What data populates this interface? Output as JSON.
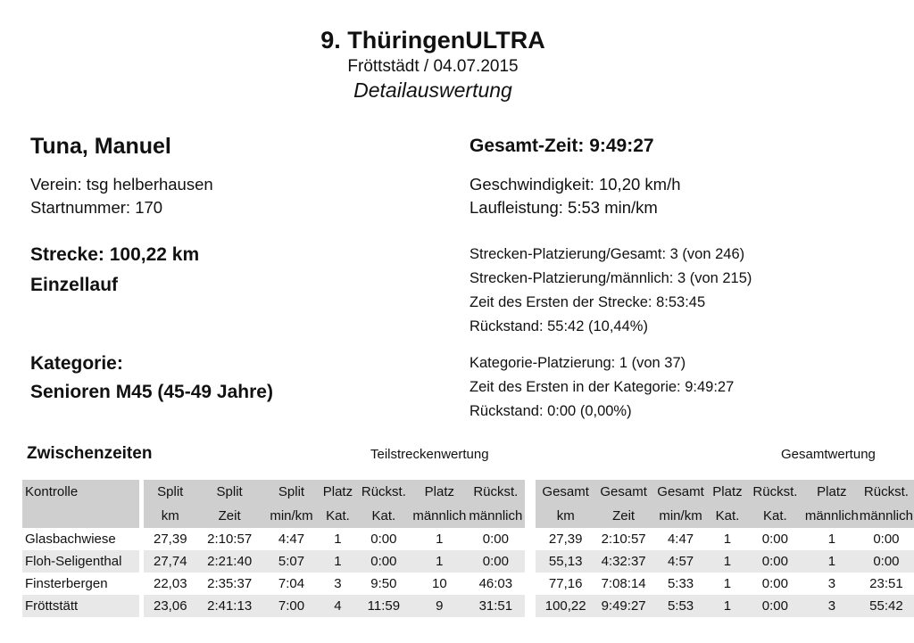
{
  "header": {
    "title": "9. ThüringenULTRA",
    "location_date": "Fröttstädt / 04.07.2015",
    "subtitle": "Detailauswertung"
  },
  "runner": {
    "name": "Tuna, Manuel",
    "club": "Verein: tsg helberhausen",
    "start_number": "Startnummer: 170",
    "distance": "Strecke: 100,22 km",
    "mode": "Einzellauf",
    "category_label": "Kategorie:",
    "category": "Senioren M45 (45-49 Jahre)"
  },
  "results": {
    "total_time": "Gesamt-Zeit: 9:49:27",
    "speed": "Geschwindigkeit: 10,20 km/h",
    "pace": "Laufleistung: 5:53 min/km",
    "rank_total": "Strecken-Platzierung/Gesamt: 3 (von 246)",
    "rank_male": "Strecken-Platzierung/männlich: 3 (von 215)",
    "leader_time": "Zeit des Ersten der Strecke: 8:53:45",
    "behind": "Rückstand: 55:42 (10,44%)",
    "cat_rank": "Kategorie-Platzierung: 1 (von 37)",
    "cat_leader_time": "Zeit des Ersten in der Kategorie: 9:49:27",
    "cat_behind": "Rückstand: 0:00 (0,00%)"
  },
  "splits": {
    "section_title": "Zwischenzeiten",
    "group1_label": "Teilstreckenwertung",
    "group2_label": "Gesamtwertung",
    "header_top": [
      "Kontrolle",
      "Split",
      "Split",
      "Split",
      "Platz",
      "Rückst.",
      "Platz",
      "Rückst.",
      "Gesamt",
      "Gesamt",
      "Gesamt",
      "Platz",
      "Rückst.",
      "Platz",
      "Rückst."
    ],
    "header_bottom": [
      "",
      "km",
      "Zeit",
      "min/km",
      "Kat.",
      "Kat.",
      "männlich",
      "männlich",
      "km",
      "Zeit",
      "min/km",
      "Kat.",
      "Kat.",
      "männlich",
      "männlich"
    ],
    "rows": [
      [
        "Glasbachwiese",
        "27,39",
        "2:10:57",
        "4:47",
        "1",
        "0:00",
        "1",
        "0:00",
        "27,39",
        "2:10:57",
        "4:47",
        "1",
        "0:00",
        "1",
        "0:00"
      ],
      [
        "Floh-Seligenthal",
        "27,74",
        "2:21:40",
        "5:07",
        "1",
        "0:00",
        "1",
        "0:00",
        "55,13",
        "4:32:37",
        "4:57",
        "1",
        "0:00",
        "1",
        "0:00"
      ],
      [
        "Finsterbergen",
        "22,03",
        "2:35:37",
        "7:04",
        "3",
        "9:50",
        "10",
        "46:03",
        "77,16",
        "7:08:14",
        "5:33",
        "1",
        "0:00",
        "3",
        "23:51"
      ],
      [
        "Fröttstätt",
        "23,06",
        "2:41:13",
        "7:00",
        "4",
        "11:59",
        "9",
        "31:51",
        "100,22",
        "9:49:27",
        "5:53",
        "1",
        "0:00",
        "3",
        "55:42"
      ]
    ]
  }
}
